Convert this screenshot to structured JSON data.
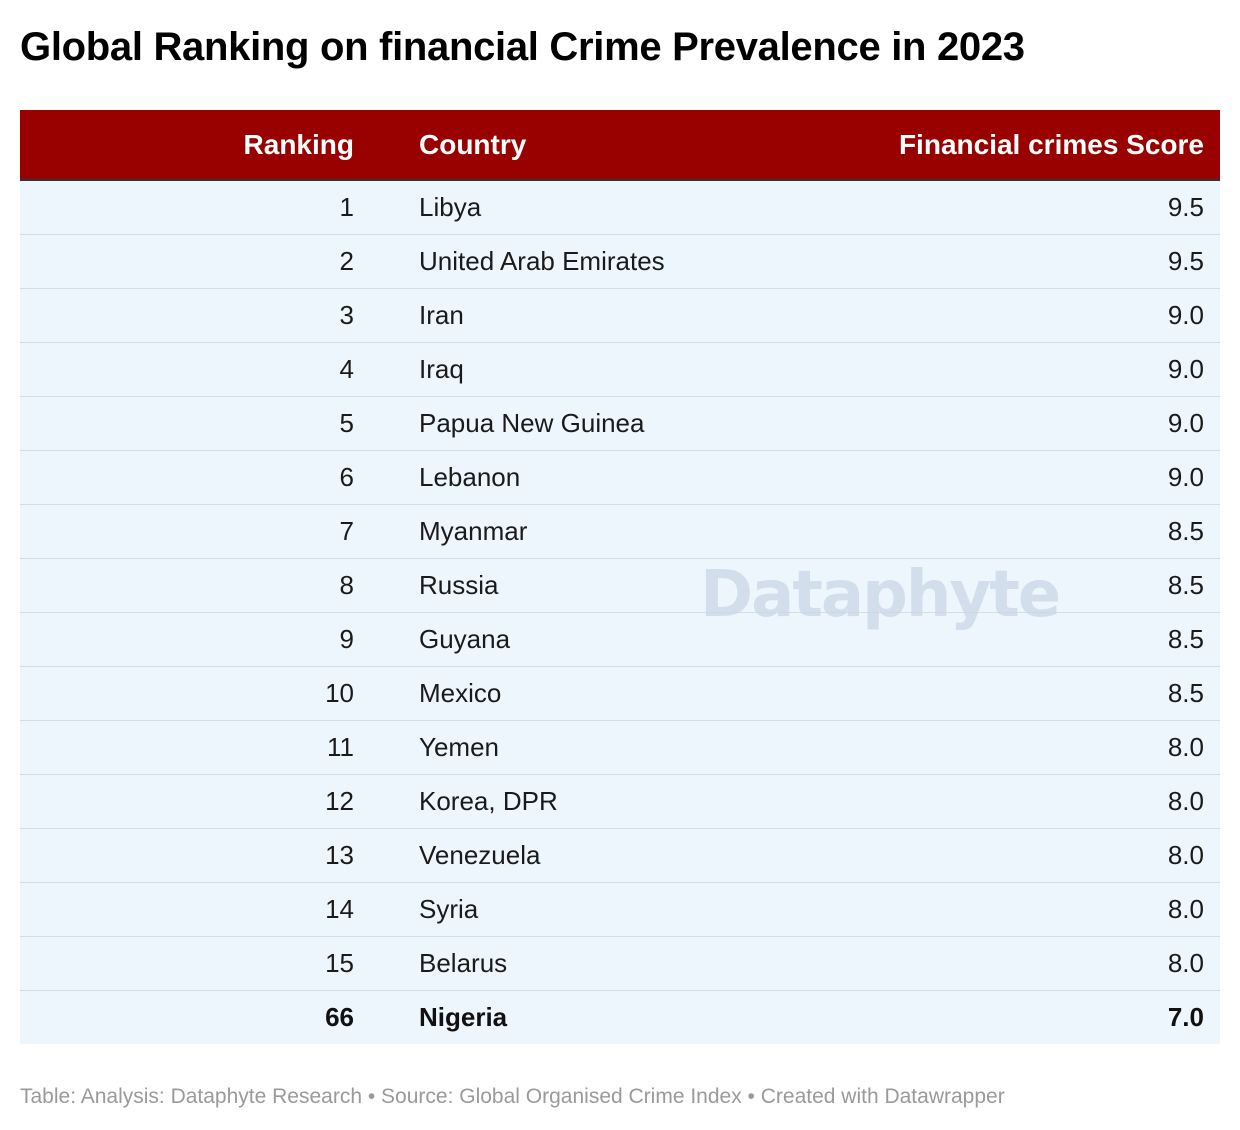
{
  "header": {
    "title": "Global Ranking on financial Crime Prevalence in 2023"
  },
  "colors": {
    "header_bg": "#990000",
    "row_bg": "#eef6fd"
  },
  "watermark": "Dataphyte",
  "footer": "Table: Analysis: Dataphyte Research • Source: Global Organised Crime Index • Created with Datawrapper",
  "chart_data": {
    "type": "table",
    "columns": [
      "Ranking",
      "Country",
      "Financial crimes Score"
    ],
    "rows": [
      {
        "rank": "1",
        "country": "Libya",
        "score": "9.5"
      },
      {
        "rank": "2",
        "country": "United Arab Emirates",
        "score": "9.5"
      },
      {
        "rank": "3",
        "country": "Iran",
        "score": "9.0"
      },
      {
        "rank": "4",
        "country": "Iraq",
        "score": "9.0"
      },
      {
        "rank": "5",
        "country": "Papua New Guinea",
        "score": "9.0"
      },
      {
        "rank": "6",
        "country": "Lebanon",
        "score": "9.0"
      },
      {
        "rank": "7",
        "country": "Myanmar",
        "score": "8.5"
      },
      {
        "rank": "8",
        "country": "Russia",
        "score": "8.5"
      },
      {
        "rank": "9",
        "country": "Guyana",
        "score": "8.5"
      },
      {
        "rank": "10",
        "country": "Mexico",
        "score": "8.5"
      },
      {
        "rank": "11",
        "country": "Yemen",
        "score": "8.0"
      },
      {
        "rank": "12",
        "country": "Korea, DPR",
        "score": "8.0"
      },
      {
        "rank": "13",
        "country": "Venezuela",
        "score": "8.0"
      },
      {
        "rank": "14",
        "country": "Syria",
        "score": "8.0"
      },
      {
        "rank": "15",
        "country": "Belarus",
        "score": "8.0"
      },
      {
        "rank": "66",
        "country": "Nigeria",
        "score": "7.0",
        "highlight": true
      }
    ]
  }
}
